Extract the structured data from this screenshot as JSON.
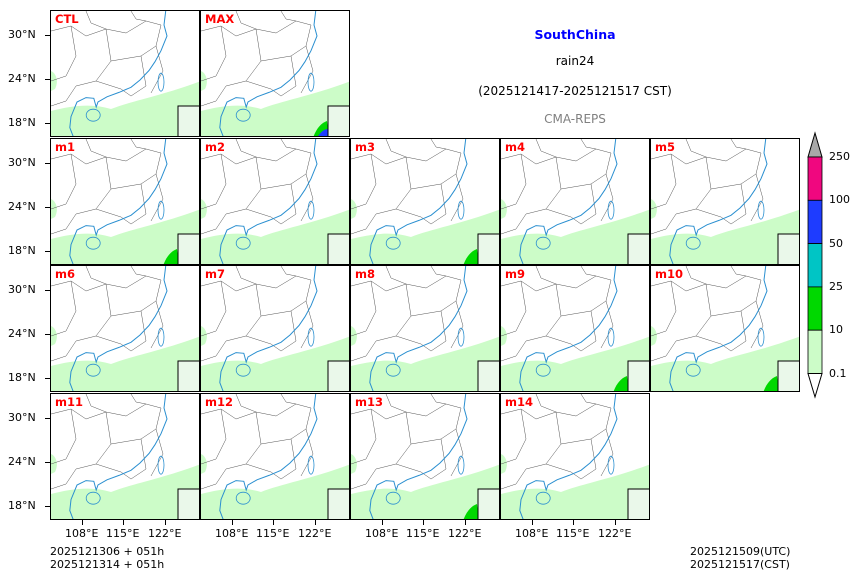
{
  "title": {
    "region": "SouthChina",
    "variable": "rain24",
    "period": "(2025121417-2025121517 CST)",
    "source": "CMA-REPS"
  },
  "colors": {
    "region": "#0000ff",
    "label": "#ff0000",
    "source": "#808080"
  },
  "panels": [
    {
      "label": "CTL",
      "row": 0,
      "col": 0,
      "heavy": 0
    },
    {
      "label": "MAX",
      "row": 0,
      "col": 1,
      "heavy": 2
    },
    {
      "label": "m1",
      "row": 1,
      "col": 0,
      "heavy": 1
    },
    {
      "label": "m2",
      "row": 1,
      "col": 1,
      "heavy": 0
    },
    {
      "label": "m3",
      "row": 1,
      "col": 2,
      "heavy": 1
    },
    {
      "label": "m4",
      "row": 1,
      "col": 3,
      "heavy": 0
    },
    {
      "label": "m5",
      "row": 1,
      "col": 4,
      "heavy": 0
    },
    {
      "label": "m6",
      "row": 2,
      "col": 0,
      "heavy": 0
    },
    {
      "label": "m7",
      "row": 2,
      "col": 1,
      "heavy": 0
    },
    {
      "label": "m8",
      "row": 2,
      "col": 2,
      "heavy": 0
    },
    {
      "label": "m9",
      "row": 2,
      "col": 3,
      "heavy": 1
    },
    {
      "label": "m10",
      "row": 2,
      "col": 4,
      "heavy": 1
    },
    {
      "label": "m11",
      "row": 3,
      "col": 0,
      "heavy": 0
    },
    {
      "label": "m12",
      "row": 3,
      "col": 1,
      "heavy": 0
    },
    {
      "label": "m13",
      "row": 3,
      "col": 2,
      "heavy": 1
    },
    {
      "label": "m14",
      "row": 3,
      "col": 3,
      "heavy": 0
    }
  ],
  "yticks": [
    "30°N",
    "24°N",
    "18°N"
  ],
  "xticks": [
    "108°E",
    "115°E",
    "122°E"
  ],
  "colorbar": {
    "labels": [
      "250",
      "100",
      "50",
      "25",
      "10",
      "0.1"
    ],
    "colors": [
      "#f0077f",
      "#1e3cff",
      "#00c5c5",
      "#00d800",
      "#ccfcc8"
    ],
    "over_color": "#a8a8a8",
    "under_color": "#ffffff"
  },
  "footer": {
    "init_utc": "2025121306  +  051h",
    "init_cst": "2025121314  +  051h",
    "valid_utc": "2025121509(UTC)",
    "valid_cst": "2025121517(CST)"
  }
}
